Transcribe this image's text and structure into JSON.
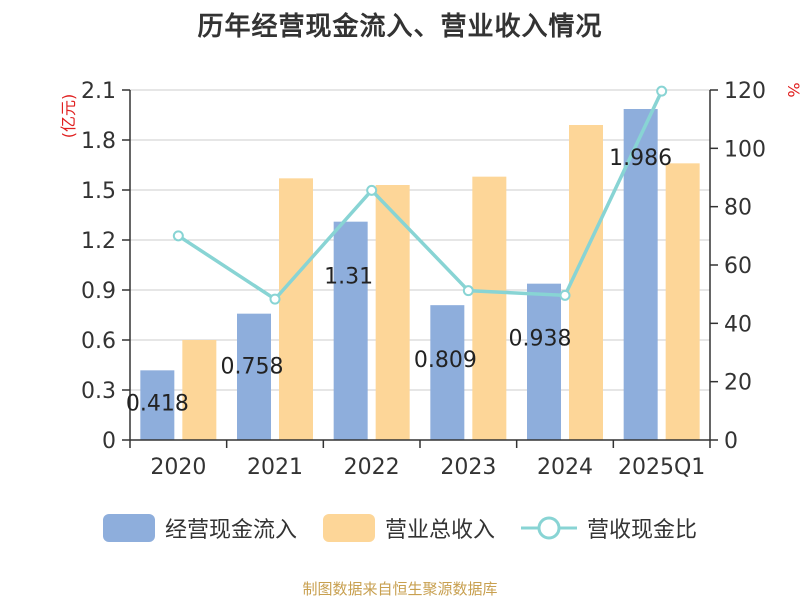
{
  "chart": {
    "title": "历年经营现金流入、营业收入情况"
  },
  "chart_data": {
    "type": "bar",
    "title": "历年经营现金流入、营业收入情况",
    "categories": [
      "2020",
      "2021",
      "2022",
      "2023",
      "2024",
      "2025Q1"
    ],
    "y_left": {
      "unit_label": "(亿元)",
      "range": [
        0,
        2.1
      ],
      "ticks": [
        "0",
        "0.3",
        "0.6",
        "0.9",
        "1.2",
        "1.5",
        "1.8",
        "2.1"
      ]
    },
    "y_right": {
      "unit_label": "%",
      "range": [
        0,
        120
      ],
      "ticks": [
        "0",
        "20",
        "40",
        "60",
        "80",
        "100",
        "120"
      ]
    },
    "series": [
      {
        "name": "经营现金流入",
        "axis": "left",
        "kind": "bar",
        "color": "#8eaedc",
        "values": [
          0.418,
          0.758,
          1.31,
          0.809,
          0.938,
          1.986
        ],
        "labels": [
          "0.418",
          "0.758",
          "1.31",
          "0.809",
          "0.938",
          "1.986"
        ]
      },
      {
        "name": "营业总收入",
        "axis": "left",
        "kind": "bar",
        "color": "#fdd698",
        "values": [
          0.6,
          1.57,
          1.53,
          1.58,
          1.89,
          1.66
        ]
      },
      {
        "name": "营收现金比",
        "axis": "right",
        "kind": "line",
        "color": "#88d4d4",
        "values": [
          70,
          48.3,
          85.6,
          51.2,
          49.6,
          119.6
        ]
      }
    ],
    "grid": true,
    "legend_position": "bottom"
  },
  "legend": {
    "items": [
      "经营现金流入",
      "营业总收入",
      "营收现金比"
    ]
  },
  "footer": {
    "source": "制图数据来自恒生聚源数据库"
  }
}
